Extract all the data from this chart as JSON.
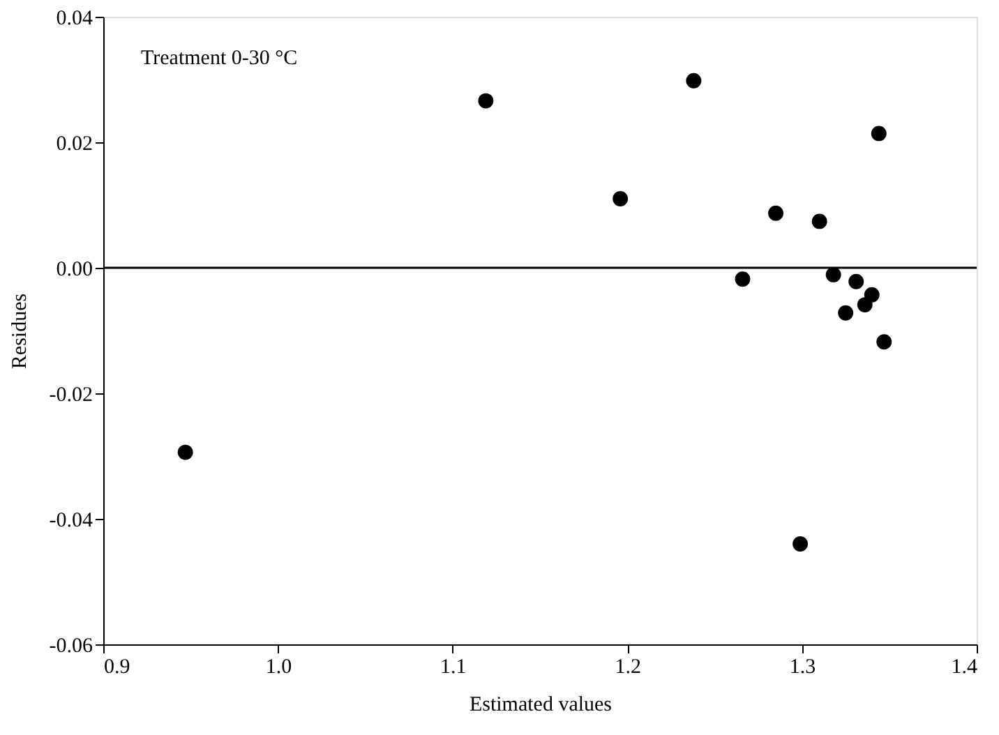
{
  "chart_data": {
    "type": "scatter",
    "xlabel": "Estimated values",
    "ylabel": "Residues",
    "annotations": [
      "Treatment 0-30 °C"
    ],
    "x": [
      0.947,
      1.119,
      1.238,
      1.196,
      1.285,
      1.31,
      1.344,
      1.266,
      1.318,
      1.331,
      1.34,
      1.336,
      1.325,
      1.347,
      1.299
    ],
    "series": [
      {
        "color": "#000000",
        "values": [
          -0.0294,
          0.0266,
          0.0298,
          0.011,
          0.0087,
          0.0074,
          0.0214,
          -0.0018,
          -0.0011,
          -0.0022,
          -0.0043,
          -0.0059,
          -0.0072,
          -0.0118,
          -0.044
        ]
      }
    ],
    "xlim": [
      0.9,
      1.4
    ],
    "xticks": [
      {
        "value": 0.9,
        "label": "0.9"
      },
      {
        "value": 1.0,
        "label": "1.0"
      },
      1.1,
      1.2,
      1.3,
      1.4
    ],
    "ylim": [
      -0.06,
      0.04
    ],
    "yticks": [
      {
        "value": -0.06,
        "label": "-0.06"
      },
      {
        "value": -0.04,
        "label": "-0.04"
      },
      {
        "value": -0.02,
        "label": "-0.02"
      },
      {
        "value": 0,
        "label": "0.00"
      },
      {
        "value": 0.02,
        "label": "0.02"
      },
      {
        "value": 0.04,
        "label": "0.04"
      }
    ],
    "ref_lines": [
      {
        "axis": "y",
        "value": 0
      }
    ],
    "marker": "circle",
    "grid": false,
    "legend": false
  }
}
